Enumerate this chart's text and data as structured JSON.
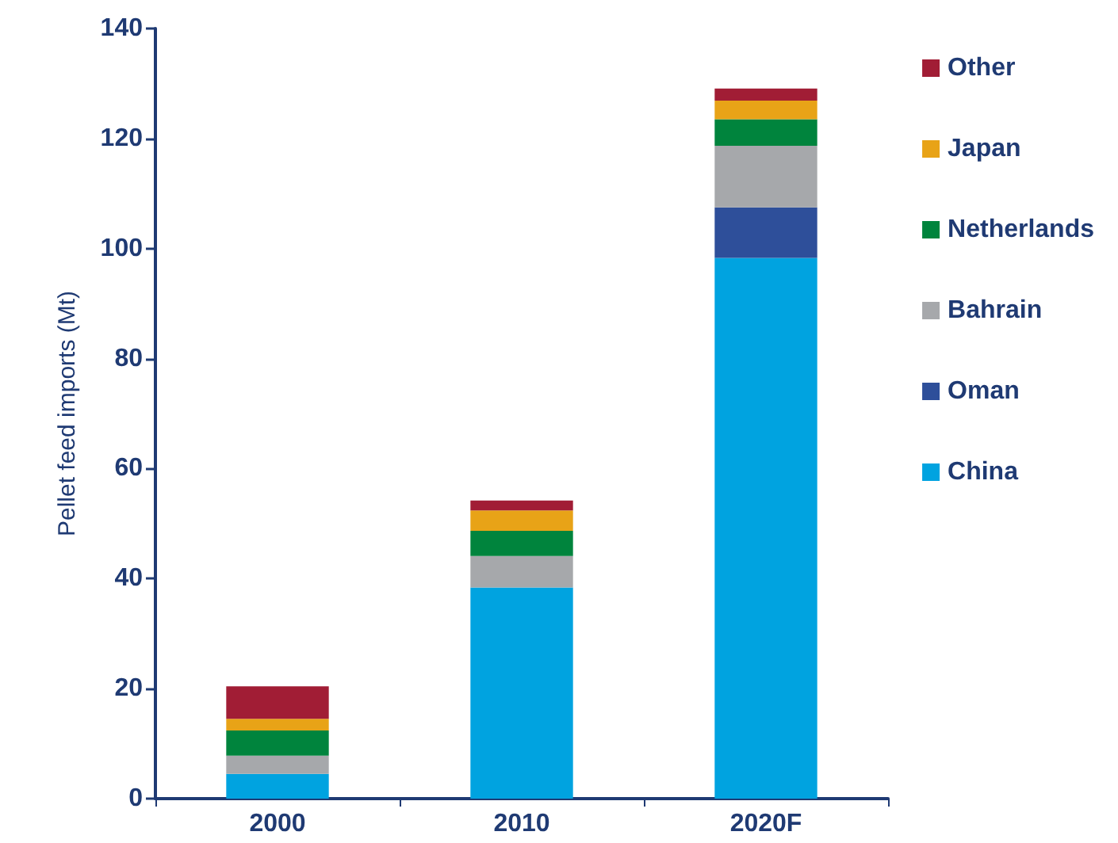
{
  "chart_data": {
    "type": "bar",
    "stacked": true,
    "ylabel": "Pellet feed imports (Mt)",
    "categories": [
      "2000",
      "2010",
      "2020F"
    ],
    "series": [
      {
        "name": "China",
        "color": "#00a3e0",
        "values": [
          4.5,
          38.4,
          98.3
        ]
      },
      {
        "name": "Oman",
        "color": "#2e4f9a",
        "values": [
          null,
          null,
          9.2
        ]
      },
      {
        "name": "Bahrain",
        "color": "#a6a8ab",
        "values": [
          3.3,
          5.7,
          11.2
        ]
      },
      {
        "name": "Netherlands",
        "color": "#00843d",
        "values": [
          4.6,
          4.6,
          4.8
        ]
      },
      {
        "name": "Japan",
        "color": "#e8a317",
        "values": [
          2.1,
          3.7,
          3.4
        ]
      },
      {
        "name": "Other",
        "color": "#a11d35",
        "values": [
          5.9,
          1.8,
          2.2
        ]
      }
    ],
    "ylim": [
      0,
      140
    ],
    "yticks": [
      0,
      20,
      40,
      60,
      80,
      100,
      120,
      140
    ],
    "grid": false,
    "legend": "right"
  }
}
